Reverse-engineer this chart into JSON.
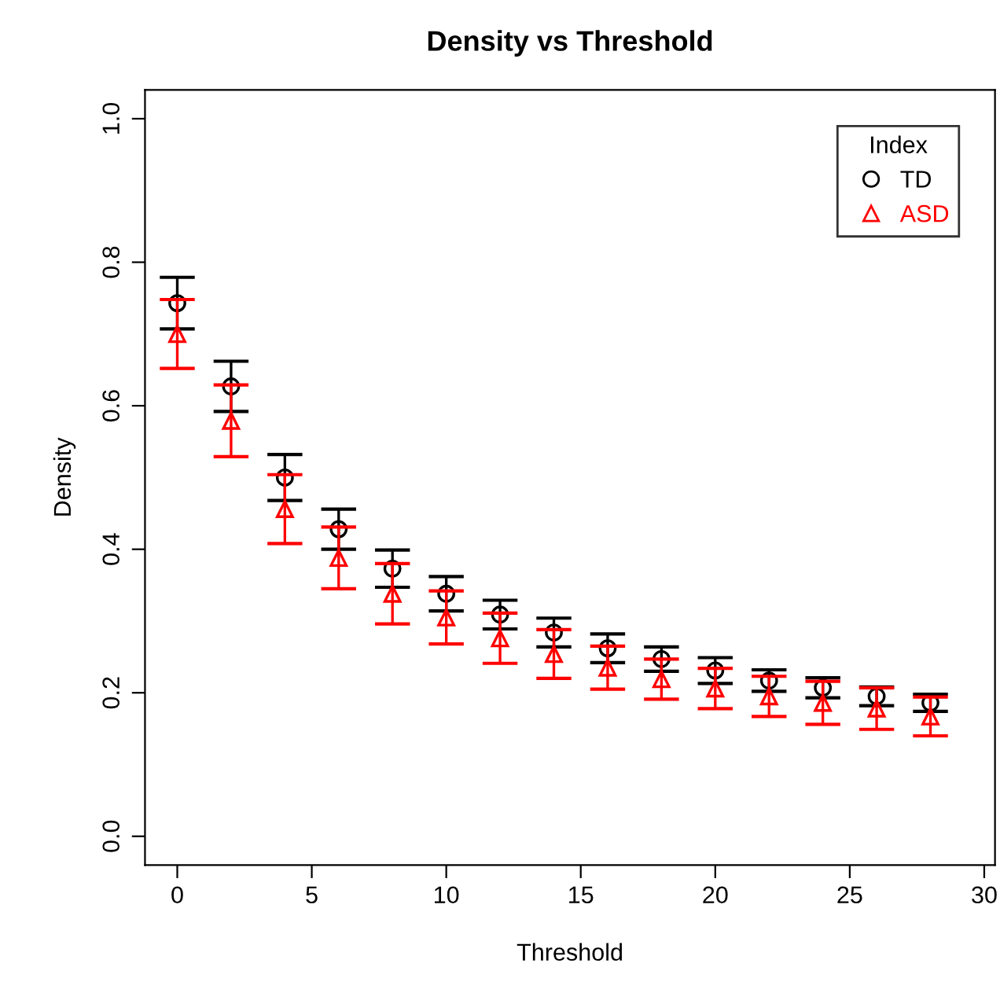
{
  "chart_data": {
    "type": "scatter",
    "title": "Density vs Threshold",
    "xlabel": "Threshold",
    "ylabel": "Density",
    "legend_title": "Index",
    "legend": "top right",
    "grid": false,
    "x": [
      0,
      2,
      4,
      6,
      8,
      10,
      12,
      14,
      16,
      18,
      20,
      22,
      24,
      26,
      28
    ],
    "xlim": [
      -1.2,
      30.4
    ],
    "xticks": [
      0,
      5,
      10,
      15,
      20,
      25,
      30
    ],
    "ylim": [
      -0.04,
      1.04
    ],
    "yticks": [
      {
        "value": 0,
        "label": "0.0"
      },
      0.2,
      0.4,
      0.6,
      0.8,
      {
        "value": 1,
        "label": "1.0"
      }
    ],
    "series": [
      {
        "name": "TD",
        "color": "#000000",
        "marker": "circle",
        "values": [
          0.743,
          0.627,
          0.5,
          0.428,
          0.373,
          0.338,
          0.309,
          0.284,
          0.262,
          0.247,
          0.231,
          0.217,
          0.207,
          0.195,
          0.186
        ],
        "errors": [
          0.036,
          0.035,
          0.032,
          0.028,
          0.026,
          0.024,
          0.02,
          0.02,
          0.02,
          0.017,
          0.018,
          0.015,
          0.014,
          0.013,
          0.012
        ]
      },
      {
        "name": "ASD",
        "color": "#ff0000",
        "marker": "triangle",
        "values": [
          0.7,
          0.579,
          0.456,
          0.388,
          0.338,
          0.305,
          0.276,
          0.254,
          0.235,
          0.219,
          0.206,
          0.195,
          0.186,
          0.178,
          0.167
        ],
        "errors": [
          0.048,
          0.05,
          0.048,
          0.043,
          0.042,
          0.037,
          0.035,
          0.034,
          0.03,
          0.028,
          0.028,
          0.028,
          0.03,
          0.029,
          0.027
        ]
      }
    ]
  }
}
